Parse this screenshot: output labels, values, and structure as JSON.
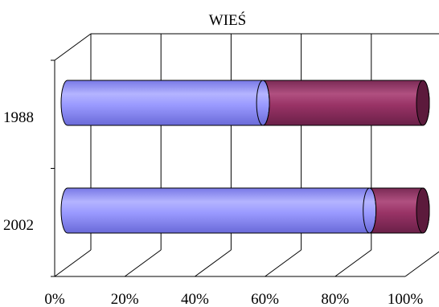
{
  "chart_data": {
    "type": "bar",
    "orientation": "horizontal",
    "stacked": "percent",
    "style": "3d-cylinder",
    "title": "WIEŚ",
    "categories": [
      "1988",
      "2002"
    ],
    "series": [
      {
        "values": [
          55,
          85
        ],
        "color": "#9a9aff"
      },
      {
        "values": [
          45,
          15
        ],
        "color": "#993366"
      }
    ],
    "x_ticks": [
      "0%",
      "20%",
      "40%",
      "60%",
      "80%",
      "100%"
    ],
    "xlim": [
      0,
      100
    ],
    "grid": true,
    "legend": "none"
  }
}
